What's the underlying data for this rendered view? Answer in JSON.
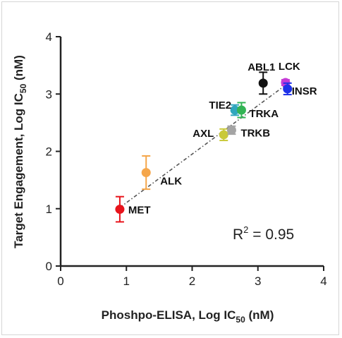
{
  "chart_data": {
    "type": "scatter",
    "xlabel_main": "Phoshpo-ELISA, Log IC",
    "xlabel_sub": "50",
    "xlabel_unit": " (nM)",
    "ylabel_main": "Target Engagement, Log IC",
    "ylabel_sub": "50",
    "ylabel_unit": " (nM)",
    "xlim": [
      0,
      4
    ],
    "ylim": [
      0,
      4
    ],
    "xticks": [
      "0",
      "1",
      "2",
      "3",
      "4"
    ],
    "yticks": [
      "0",
      "1",
      "2",
      "3",
      "4"
    ],
    "grid": false,
    "points": [
      {
        "label": "MET",
        "x": 0.9,
        "y": 0.99,
        "err": 0.22,
        "color": "#e8141c"
      },
      {
        "label": "ALK",
        "x": 1.3,
        "y": 1.63,
        "err": 0.29,
        "color": "#f5a64a"
      },
      {
        "label": "AXL",
        "x": 2.48,
        "y": 2.29,
        "err": 0.1,
        "color": "#c9c93a"
      },
      {
        "label": "TRKB",
        "x": 2.6,
        "y": 2.37,
        "err": 0.07,
        "color": "#a4a4a4"
      },
      {
        "label": "TIE2",
        "x": 2.65,
        "y": 2.72,
        "err": 0.09,
        "color": "#2fa6bd"
      },
      {
        "label": "TRKA",
        "x": 2.75,
        "y": 2.72,
        "err": 0.13,
        "color": "#33b455"
      },
      {
        "label": "ABL1",
        "x": 3.08,
        "y": 3.19,
        "err": 0.19,
        "color": "#111111"
      },
      {
        "label": "LCK",
        "x": 3.42,
        "y": 3.2,
        "err": 0.05,
        "color": "#c63cd6"
      },
      {
        "label": "INSR",
        "x": 3.45,
        "y": 3.09,
        "err": 0.1,
        "color": "#1e31e8"
      }
    ],
    "fit_line": {
      "x": [
        0.9,
        3.45
      ],
      "y": [
        1.02,
        3.18
      ]
    },
    "r2_main": "R",
    "r2_sup": "2",
    "r2_value": " = 0.95"
  }
}
